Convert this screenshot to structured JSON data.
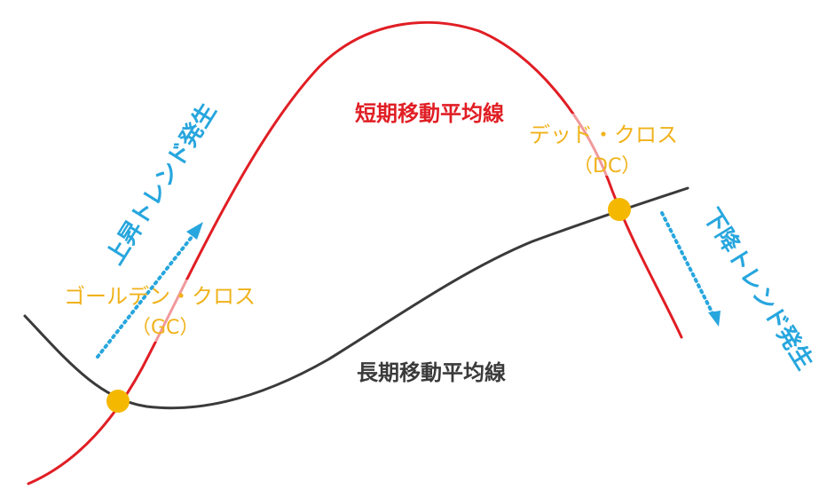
{
  "colors": {
    "short_line": "#e01e24",
    "long_line": "#3a3a3a",
    "cross_marker": "#f5b800",
    "cross_text": "#f0b21a",
    "trend_text": "#27a6de",
    "trend_arrow": "#27a6de",
    "label_short": "#e01e24",
    "label_long": "#3a3a3a"
  },
  "labels": {
    "short_ma": "短期移動平均線",
    "long_ma": "長期移動平均線",
    "golden_cross": "ゴールデン・クロス",
    "golden_cross_abbr": "（GC）",
    "dead_cross": "デッド・クロス",
    "dead_cross_abbr": "（DC）",
    "uptrend": "上昇トレンド発生",
    "downtrend": "下降トレンド発生"
  },
  "icons": {
    "golden_cross_marker": "circle-marker",
    "dead_cross_marker": "circle-marker",
    "uptrend_arrow": "dotted-arrow-up-right-icon",
    "downtrend_arrow": "dotted-arrow-down-right-icon"
  }
}
